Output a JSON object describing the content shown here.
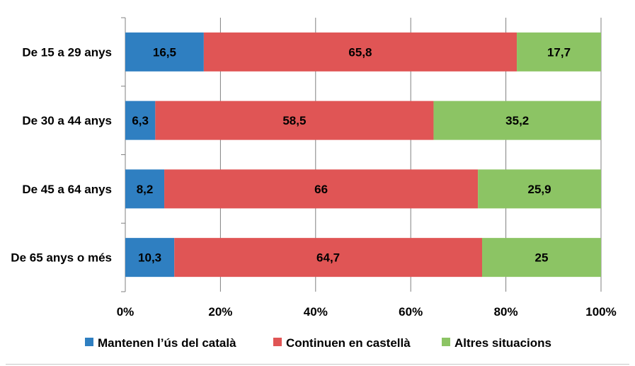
{
  "chart_data": {
    "type": "bar",
    "orientation": "horizontal",
    "stacked": "percent",
    "categories": [
      "De 15 a 29 anys",
      "De 30 a 44 anys",
      "De 45 a 64 anys",
      "De 65 anys o més"
    ],
    "series": [
      {
        "name": "Mantenen l’ús del català",
        "values": [
          16.5,
          6.3,
          8.2,
          10.3
        ],
        "labels": [
          "16,5",
          "6,3",
          "8,2",
          "10,3"
        ],
        "color": "#2f7fc1"
      },
      {
        "name": "Continuen en castellà",
        "values": [
          65.8,
          58.5,
          66,
          64.7
        ],
        "labels": [
          "65,8",
          "58,5",
          "66",
          "64,7"
        ],
        "color": "#e05555"
      },
      {
        "name": "Altres situacions",
        "values": [
          17.7,
          35.2,
          25.9,
          25
        ],
        "labels": [
          "17,7",
          "35,2",
          "25,9",
          "25"
        ],
        "color": "#8cc464"
      }
    ],
    "xlim": [
      0,
      100
    ],
    "ticks": [
      0,
      20,
      40,
      60,
      80,
      100
    ],
    "tick_labels": [
      "0%",
      "20%",
      "40%",
      "60%",
      "80%",
      "100%"
    ],
    "grid": "vertical",
    "grid_color": "#808080",
    "legend_position": "bottom",
    "title": "",
    "xlabel": "",
    "ylabel": ""
  }
}
